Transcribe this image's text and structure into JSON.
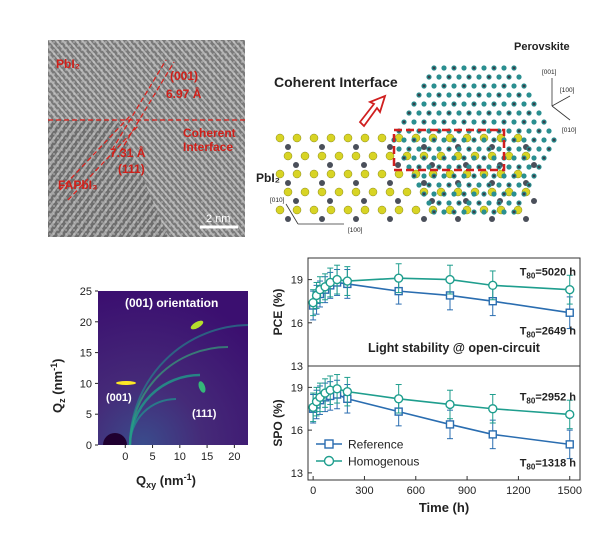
{
  "tem": {
    "labels": {
      "pbi2": "PbI₂",
      "plane001": "(001)",
      "d1": "6.97 Å",
      "coherent_line1": "Coherent",
      "coherent_line2": "Interface",
      "d2": "7.31 Å",
      "plane111": "(111)",
      "fapbi3": "FAPbI₃",
      "scalebar": "2 nm"
    }
  },
  "crystal": {
    "title": "Coherent Interface",
    "perovskite_label": "Perovskite",
    "pbi2_label": "PbI₂",
    "axes_perovskite": [
      "[001]",
      "[100]",
      "[010]"
    ],
    "axes_pbi2": [
      "[010]",
      "[100]"
    ],
    "colors": {
      "lead": "#4a4f5a",
      "iodine": "#d8d424",
      "perovskite_atom": "#2a8f90",
      "highlight": "#d01f1f"
    }
  },
  "giwaxs": {
    "title": "(001) orientation",
    "xlabel": "Q",
    "xlabel_sub": "xy",
    "xlabel_unit": " (nm",
    "xlabel_sup": "-1",
    "xlabel_close": ")",
    "ylabel": "Q",
    "ylabel_sub": "z",
    "ylabel_unit": " (nm",
    "ylabel_sup": "-1",
    "ylabel_close": ")",
    "peak_labels": [
      "(001)",
      "(111)"
    ],
    "xticks": [
      "0",
      "5",
      "10",
      "15",
      "20"
    ],
    "yticks": [
      "0",
      "5",
      "10",
      "15",
      "20",
      "25"
    ],
    "colors": {
      "background": "#3b0f70",
      "ring": "#21908d",
      "hot": "#fde725"
    }
  },
  "chart_data": [
    {
      "type": "line",
      "panel": "PCE",
      "ylabel": "PCE (%)",
      "annotation": "Light stability @ open-circuit",
      "t80_labels": [
        {
          "series": "Homogenous",
          "text": "T80=5020 h"
        },
        {
          "series": "Reference",
          "text": "T80=2649 h"
        }
      ],
      "ylim": [
        13,
        20.5
      ],
      "yticks": [
        13,
        16,
        19
      ],
      "xlim": [
        -30,
        1560
      ],
      "series": [
        {
          "name": "Reference",
          "color": "#2a6db0",
          "marker": "square",
          "x": [
            0,
            20,
            40,
            70,
            100,
            140,
            200,
            500,
            800,
            1050,
            1500
          ],
          "y": [
            17.2,
            17.6,
            18.0,
            18.3,
            18.6,
            18.8,
            18.7,
            18.2,
            17.9,
            17.5,
            16.7
          ],
          "err": [
            1.0,
            1.0,
            0.9,
            0.9,
            0.9,
            0.9,
            1.0,
            0.9,
            1.0,
            1.0,
            1.1
          ]
        },
        {
          "name": "Homogenous",
          "color": "#1f9e8e",
          "marker": "circle",
          "x": [
            0,
            20,
            40,
            70,
            100,
            140,
            200,
            500,
            800,
            1050,
            1500
          ],
          "y": [
            17.4,
            17.9,
            18.3,
            18.5,
            18.8,
            19.0,
            18.9,
            19.1,
            19.0,
            18.6,
            18.3
          ],
          "err": [
            0.9,
            0.9,
            0.9,
            0.9,
            1.0,
            1.0,
            1.0,
            1.0,
            1.0,
            1.0,
            1.0
          ]
        }
      ]
    },
    {
      "type": "line",
      "panel": "SPO",
      "ylabel": "SPO (%)",
      "xlabel": "Time (h)",
      "xticks": [
        0,
        300,
        600,
        900,
        1200,
        1500
      ],
      "t80_labels": [
        {
          "series": "Homogenous",
          "text": "T80=2952 h"
        },
        {
          "series": "Reference",
          "text": "T80=1318 h"
        }
      ],
      "ylim": [
        12.5,
        20.5
      ],
      "yticks": [
        13,
        16,
        19
      ],
      "xlim": [
        -30,
        1560
      ],
      "legend": "bottom-left",
      "series": [
        {
          "name": "Reference",
          "color": "#2a6db0",
          "marker": "square",
          "x": [
            0,
            20,
            40,
            70,
            100,
            140,
            200,
            500,
            800,
            1050,
            1500
          ],
          "y": [
            17.5,
            17.8,
            18.1,
            18.3,
            18.4,
            18.5,
            18.2,
            17.3,
            16.4,
            15.7,
            15.0
          ],
          "err": [
            1.0,
            1.0,
            1.0,
            1.0,
            1.0,
            1.0,
            1.0,
            1.0,
            1.0,
            1.0,
            1.0
          ]
        },
        {
          "name": "Homogenous",
          "color": "#1f9e8e",
          "marker": "circle",
          "x": [
            0,
            20,
            40,
            70,
            100,
            140,
            200,
            500,
            800,
            1050,
            1500
          ],
          "y": [
            17.6,
            18.0,
            18.3,
            18.6,
            18.8,
            18.9,
            18.7,
            18.2,
            17.8,
            17.5,
            17.1
          ],
          "err": [
            1.0,
            1.0,
            1.0,
            1.0,
            1.0,
            1.0,
            1.0,
            1.0,
            1.0,
            1.0,
            1.0
          ]
        }
      ]
    }
  ]
}
